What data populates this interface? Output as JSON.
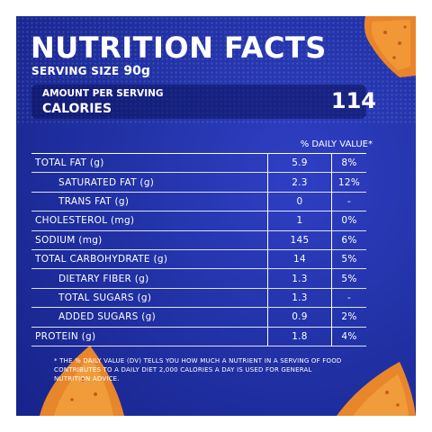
{
  "title": "NUTRITION FACTS",
  "serving": {
    "label": "SERVING SIZE",
    "value": "90g"
  },
  "calories": {
    "sub_label": "AMOUNT PER SERVING",
    "label": "CALORIES",
    "value": "114"
  },
  "daily_value_header": "% DAILY VALUE*",
  "rows": [
    {
      "name": "TOTAL FAT (g)",
      "amount": "5.9",
      "dv": "8%"
    },
    {
      "name": "SATURATED FAT (g)",
      "amount": "2.3",
      "dv": "12%"
    },
    {
      "name": "TRANS FAT (g)",
      "amount": "0",
      "dv": "-"
    },
    {
      "name": "CHOLESTEROL (mg)",
      "amount": "1",
      "dv": "0%"
    },
    {
      "name": "SODIUM (mg)",
      "amount": "145",
      "dv": "6%"
    },
    {
      "name": "TOTAL CARBOHYDRATE (g)",
      "amount": "14",
      "dv": "5%"
    },
    {
      "name": "DIETARY FIBER (g)",
      "amount": "1.3",
      "dv": "5%"
    },
    {
      "name": "TOTAL SUGARS (g)",
      "amount": "1.3",
      "dv": "-"
    },
    {
      "name": "ADDED SUGARS (g)",
      "amount": "0.9",
      "dv": "2%"
    },
    {
      "name": "PROTEIN (g)",
      "amount": "1.8",
      "dv": "4%"
    }
  ],
  "footnote": "* THE % DAILY VALUE (DV) TELLS YOU HOW MUCH A NUTRIENT IN A SERVING OF FOOD CONTRIBUTES TO A DAILY DIET 2,000 CALORIES A DAY IS USED FOR GENERAL NUTRITION ADVICE.",
  "colors": {
    "background": "#2233a8",
    "chip": "#f0902a",
    "text": "#ffffff"
  }
}
